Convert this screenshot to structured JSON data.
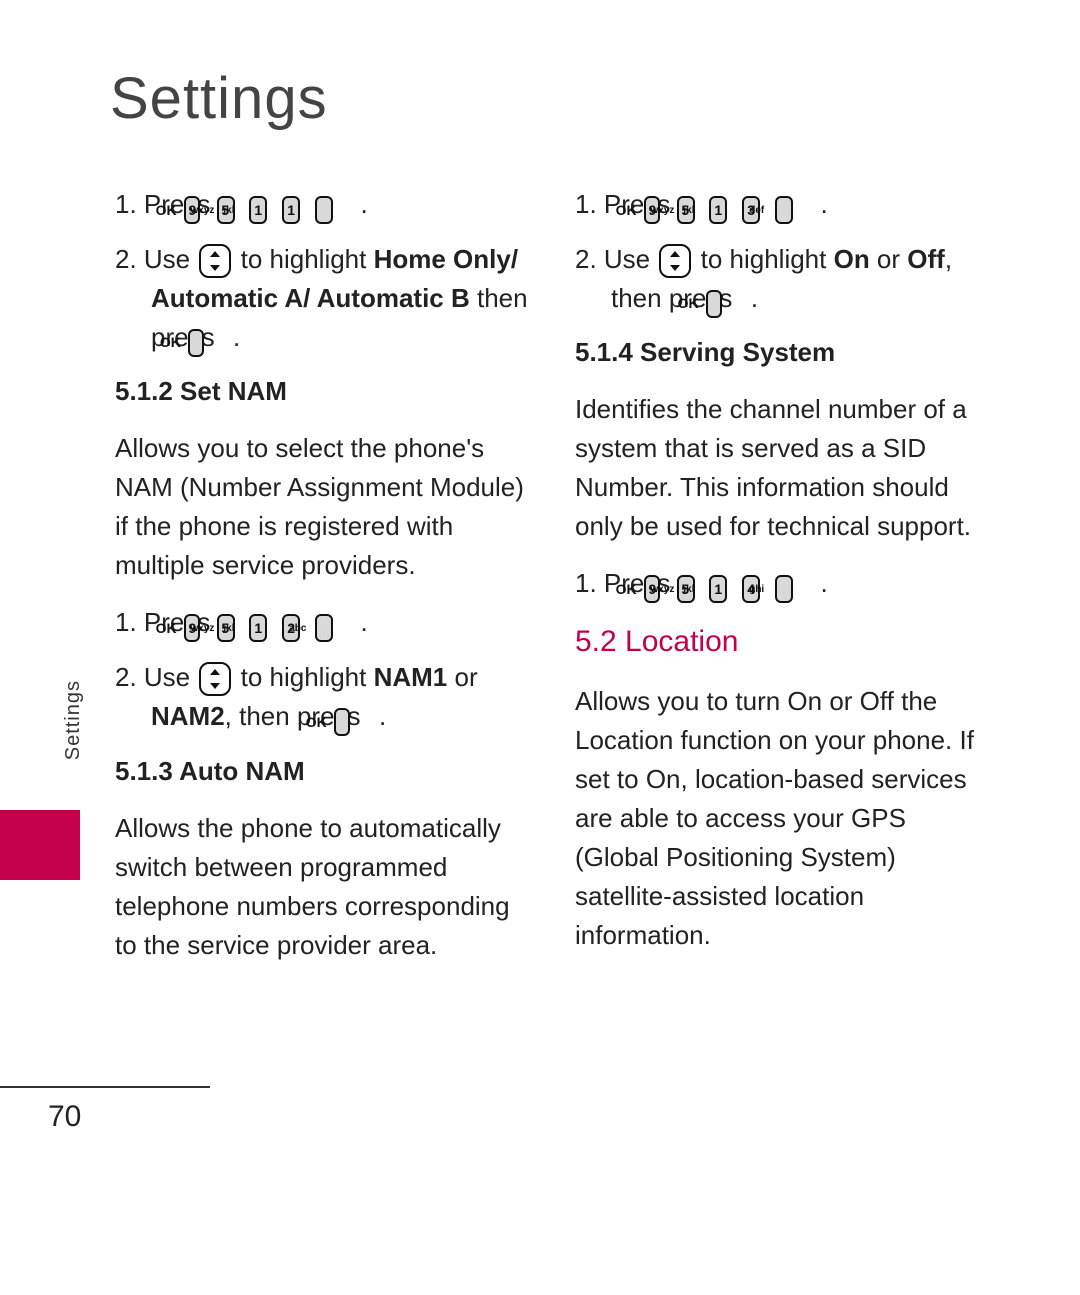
{
  "page": {
    "title": "Settings",
    "side_label": "Settings",
    "page_number": "70"
  },
  "colors": {
    "accent": "#c4004c",
    "key_fill": "#d9d9d9",
    "text": "#222222",
    "title": "#444444"
  },
  "keys": {
    "ok": "OK",
    "9": {
      "num": "9",
      "sub": "wxyz"
    },
    "5": {
      "num": "5",
      "sub": "jkl"
    },
    "1": {
      "num": "1",
      "sub": ""
    },
    "2": {
      "num": "2",
      "sub": "abc"
    },
    "3": {
      "num": "3",
      "sub": "def"
    },
    "4": {
      "num": "4",
      "sub": "ghi"
    }
  },
  "left": {
    "s1": {
      "num": "1. Press ",
      "extra_key": "1"
    },
    "s2": {
      "pre": "2. Use ",
      "mid": " to highlight ",
      "bold1": "Home Only/ Automatic A/ Automatic B",
      "after": " then press "
    },
    "h512": "5.1.2 Set NAM",
    "p512": "Allows you to select the phone's NAM (Number Assignment Module) if the phone is registered with multiple service providers.",
    "s3": {
      "num": "1. Press ",
      "extra_key": "2"
    },
    "s4": {
      "pre": "2. Use ",
      "mid": " to highlight ",
      "bold1": "NAM1",
      "or": " or ",
      "bold2": "NAM2",
      "after": ", then press "
    },
    "h513": "5.1.3 Auto NAM",
    "p513": "Allows the phone to automatically switch between programmed telephone numbers corresponding to the service provider area."
  },
  "right": {
    "s1": {
      "num": "1. Press ",
      "extra_key": "3"
    },
    "s2": {
      "pre": "2. Use ",
      "mid": " to highlight ",
      "bold1": "On",
      "or": " or ",
      "bold2": "Off",
      "after": ", then press "
    },
    "h514": "5.1.4 Serving System",
    "p514": "Identifies the channel number of a system that is served as a SID Number. This information should only be used for technical support.",
    "s3": {
      "num": "1. Press ",
      "extra_key": "4"
    },
    "h52": "5.2 Location",
    "p52": "Allows you to turn On or Off the Location function on your phone. If set to On, location-based services are able to access your GPS (Global Positioning System) satellite-assisted location information."
  }
}
